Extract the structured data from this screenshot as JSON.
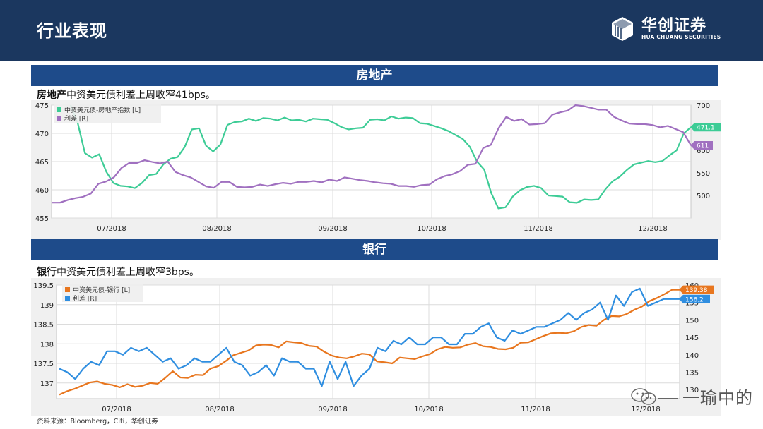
{
  "header": {
    "title": "行业表现",
    "logo_cn": "华创证券",
    "logo_en": "HUA CHUANG SECURITIES"
  },
  "sections": [
    {
      "title": "房地产",
      "note_bold": "房地产",
      "note_rest": "中资美元债利差上周收窄41bps。"
    },
    {
      "title": "银行",
      "note_bold": "银行",
      "note_rest": "中资美元债利差上周收窄3bps。"
    }
  ],
  "source": "资料来源：Bloomberg，Citi，华创证券",
  "watermark": "一瑜中的",
  "chart_data": [
    {
      "type": "line",
      "ylim_left": [
        455,
        475
      ],
      "ylim_right": [
        450,
        700
      ],
      "yticks_left": [
        "475",
        "470",
        "465",
        "460",
        "455"
      ],
      "yticks_right": [
        "700",
        "650",
        "600",
        "550",
        "500"
      ],
      "xticks": [
        "07/2018",
        "08/2018",
        "09/2018",
        "10/2018",
        "11/2018",
        "12/2018"
      ],
      "grid": true,
      "legend": "top-left",
      "series": [
        {
          "name": "中资美元债-房地产指数 [L]",
          "axis": "left",
          "color": "#3dcc96",
          "values": [
            475.0,
            471.8,
            466.5,
            465.7,
            466.3,
            463.2,
            461.2,
            460.7,
            460.6,
            460.3,
            461.2,
            462.6,
            462.8,
            464.5,
            465.5,
            465.8,
            467.6,
            470.7,
            470.9,
            467.8,
            466.8,
            468.0,
            471.5,
            472.0,
            472.1,
            472.6,
            472.2,
            472.7,
            472.6,
            472.3,
            472.8,
            472.3,
            472.4,
            472.1,
            472.6,
            472.5,
            472.4,
            471.8,
            471.1,
            470.7,
            470.9,
            471.0,
            472.4,
            472.5,
            472.3,
            473.0,
            472.6,
            472.8,
            472.7,
            471.8,
            471.7,
            471.3,
            470.9,
            470.4,
            469.7,
            469.0,
            467.6,
            465.0,
            463.6,
            459.4,
            456.7,
            456.9,
            458.8,
            459.9,
            460.5,
            460.7,
            460.3,
            459.0,
            458.9,
            458.8,
            457.8,
            457.7,
            458.3,
            458.2,
            458.3,
            460.1,
            461.5,
            462.3,
            463.5,
            464.5,
            464.8,
            465.1,
            464.9,
            465.1,
            466.1,
            467.0,
            470.0,
            471.1
          ]
        },
        {
          "name": "利差 [R]",
          "axis": "right",
          "color": "#a070c0",
          "values": [
            484,
            484,
            490,
            494,
            497,
            504,
            526,
            531,
            540,
            561,
            572,
            572,
            578,
            574,
            571,
            575,
            552,
            545,
            540,
            530,
            520,
            517,
            530,
            530,
            519,
            518,
            519,
            524,
            521,
            525,
            528,
            526,
            530,
            530,
            532,
            529,
            535,
            532,
            540,
            537,
            534,
            532,
            529,
            527,
            526,
            521,
            521,
            519,
            523,
            524,
            536,
            543,
            547,
            554,
            568,
            570,
            605,
            612,
            649,
            674,
            665,
            669,
            657,
            658,
            660,
            679,
            684,
            688,
            700,
            698,
            694,
            690,
            690,
            674,
            666,
            659,
            658,
            658,
            656,
            651,
            654,
            647,
            640,
            611
          ]
        }
      ],
      "end_labels": [
        "471.1",
        "611"
      ]
    },
    {
      "type": "line",
      "ylim_left": [
        136.6,
        139.5
      ],
      "ylim_right": [
        127.4,
        160
      ],
      "yticks_left": [
        "139.5",
        "139",
        "138.5",
        "138",
        "137.5",
        "137"
      ],
      "yticks_right": [
        "160",
        "155",
        "150",
        "145",
        "140",
        "135",
        "130"
      ],
      "xticks": [
        "07/2018",
        "08/2018",
        "09/2018",
        "10/2018",
        "11/2018",
        "12/2018"
      ],
      "grid": true,
      "legend": "top-left",
      "series": [
        {
          "name": "中资美元债-银行 [L]",
          "axis": "left",
          "color": "#e8761e",
          "values": [
            136.7,
            136.79,
            136.85,
            136.93,
            137.01,
            137.04,
            136.98,
            136.95,
            136.89,
            136.97,
            136.9,
            136.93,
            137.0,
            136.98,
            137.13,
            137.3,
            137.14,
            137.13,
            137.21,
            137.2,
            137.37,
            137.43,
            137.56,
            137.71,
            137.77,
            137.83,
            137.96,
            137.98,
            137.97,
            137.91,
            138.06,
            138.04,
            138.02,
            137.95,
            137.93,
            137.8,
            137.7,
            137.65,
            137.63,
            137.68,
            137.75,
            137.73,
            137.55,
            137.53,
            137.5,
            137.65,
            137.63,
            137.61,
            137.68,
            137.74,
            137.86,
            137.92,
            137.9,
            137.91,
            137.98,
            138.02,
            137.94,
            137.92,
            137.87,
            137.86,
            137.9,
            138.03,
            138.04,
            138.12,
            138.2,
            138.27,
            138.28,
            138.27,
            138.32,
            138.43,
            138.48,
            138.46,
            138.61,
            138.71,
            138.7,
            138.76,
            138.87,
            138.95,
            139.09,
            139.17,
            139.27,
            139.38,
            139.38
          ]
        },
        {
          "name": "利差 [R]",
          "axis": "right",
          "color": "#2f8ee0",
          "values": [
            136,
            135,
            133,
            136,
            138,
            137,
            141,
            141,
            140,
            142,
            141,
            142,
            140,
            138,
            139,
            136,
            137,
            139,
            138,
            138,
            140,
            142,
            138,
            137,
            134,
            135,
            137,
            134,
            139,
            138,
            138,
            136,
            136,
            131,
            138,
            133,
            138,
            131,
            134,
            136,
            142,
            141,
            144,
            143,
            145,
            143,
            143,
            145,
            145,
            143,
            143,
            146,
            146,
            148,
            149,
            145,
            144,
            147,
            146,
            147,
            148,
            148,
            149,
            150,
            152,
            150,
            152,
            153,
            155,
            150,
            157,
            154,
            158,
            159,
            154,
            155,
            156,
            156,
            156
          ]
        }
      ],
      "end_labels": [
        "139.38",
        "156.2"
      ]
    }
  ]
}
